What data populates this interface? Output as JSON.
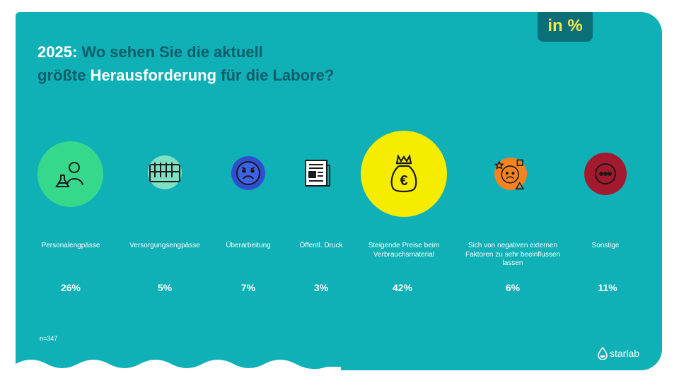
{
  "title": {
    "year": "2025:",
    "part1": " Wo sehen Sie die aktuell",
    "part2": "größte ",
    "highlight": "Herausforderung",
    "part3": " für die Labore?"
  },
  "unit_badge": "in %",
  "sample_size": "n=347",
  "brand": "starlab",
  "chart_data": {
    "type": "bubble",
    "title": "2025: Wo sehen Sie die aktuell größte Herausforderung für die Labore?",
    "unit": "in %",
    "categories": [
      "Personalengpässe",
      "Versorgungsengpässe",
      "Überarbeitung",
      "Öffentl. Druck",
      "Steigende Preise beim Verbrauchsmaterial",
      "Sich von negativen externen Faktoren zu sehr beeinflussen lassen",
      "Sonstige"
    ],
    "values": [
      26,
      5,
      7,
      3,
      42,
      6,
      11
    ],
    "value_labels": [
      "26%",
      "5%",
      "7%",
      "3%",
      "42%",
      "6%",
      "11%"
    ],
    "colors": [
      "#36d98c",
      "#7ee0c2",
      "#2f4fd0",
      "#0fb0b6",
      "#f5ec00",
      "#f5831f",
      "#a3192e"
    ],
    "icons": [
      "scientist-icon",
      "test-tubes-icon",
      "sad-face-icon",
      "newspaper-icon",
      "money-bag-icon",
      "worried-face-icon",
      "more-dots-icon"
    ]
  }
}
